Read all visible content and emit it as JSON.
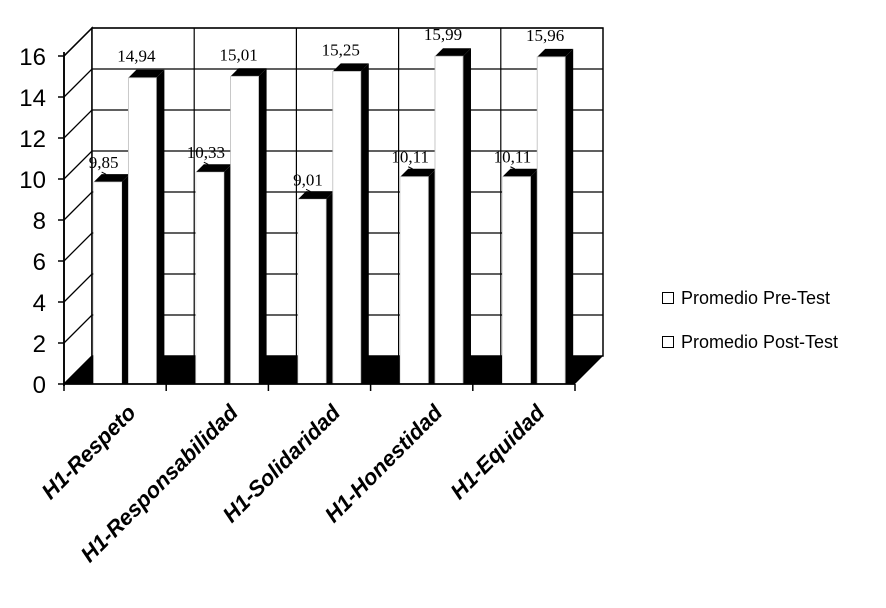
{
  "chart_data": {
    "type": "bar",
    "style": "3d-clustered-column",
    "categories": [
      "H1-Respeto",
      "H1-Responsabilidad",
      "H1-Solidaridad",
      "H1-Honestidad",
      "H1-Equidad"
    ],
    "series": [
      {
        "name": "Promedio Pre-Test",
        "values": [
          9.85,
          10.33,
          9.01,
          10.11,
          10.11
        ],
        "labels": [
          "9,85",
          "10,33",
          "9,01",
          "10,11",
          "10,11"
        ],
        "color": "#ffffff"
      },
      {
        "name": "Promedio Post-Test",
        "values": [
          14.94,
          15.01,
          15.25,
          15.99,
          15.96
        ],
        "labels": [
          "14,94",
          "15,01",
          "15,25",
          "15,99",
          "15,96"
        ],
        "color": "#ffffff"
      }
    ],
    "yticks": [
      "0",
      "2",
      "4",
      "6",
      "8",
      "10",
      "12",
      "14",
      "16"
    ],
    "ylim": [
      0,
      16
    ],
    "grid": true,
    "legend_position": "right",
    "title": "",
    "xlabel": "",
    "ylabel": "",
    "colors": {
      "bar_fill": "#ffffff",
      "bar_side": "#000000",
      "axis": "#000000",
      "grid": "#000000"
    }
  }
}
